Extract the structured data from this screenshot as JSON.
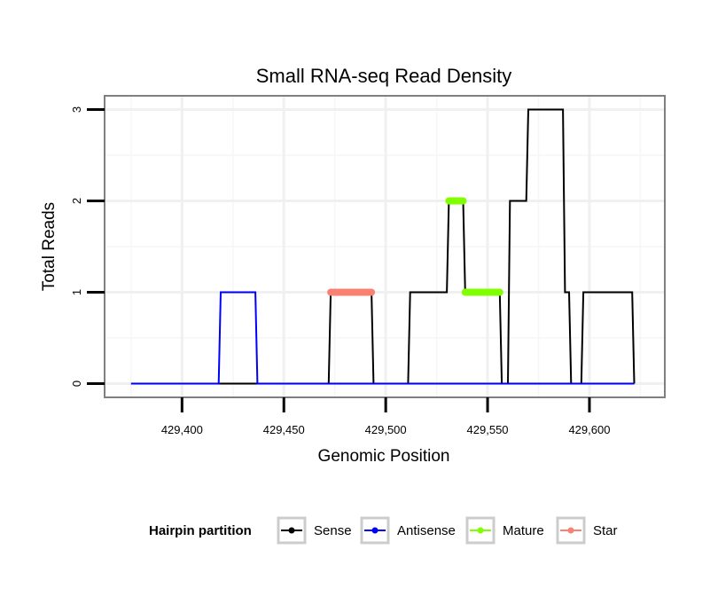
{
  "chart_data": {
    "type": "line",
    "title": "Small RNA-seq Read Density",
    "xlabel": "Genomic Position",
    "ylabel": "Total Reads",
    "xlim": [
      429362,
      429637
    ],
    "ylim": [
      -0.15,
      3.15
    ],
    "x_ticks": [
      429400,
      429450,
      429500,
      429550,
      429600
    ],
    "x_tick_labels": [
      "429,400",
      "429,450",
      "429,500",
      "429,550",
      "429,600"
    ],
    "y_ticks": [
      0,
      1,
      2,
      3
    ],
    "y_tick_labels": [
      "0",
      "1",
      "2",
      "3"
    ],
    "grid": true,
    "legend": {
      "title": "Hairpin partition",
      "position": "bottom",
      "entries": [
        {
          "name": "Sense",
          "color": "#000000"
        },
        {
          "name": "Antisense",
          "color": "#0000ff"
        },
        {
          "name": "Mature",
          "color": "#7fff00"
        },
        {
          "name": "Star",
          "color": "#fa8072"
        }
      ]
    },
    "series": [
      {
        "name": "Sense",
        "color": "#000000",
        "x": [
          429375,
          429472,
          429473,
          429493,
          429494,
          429511,
          429512,
          429530,
          429531,
          429538,
          429539,
          429556,
          429557,
          429560,
          429561,
          429569,
          429570,
          429587,
          429588,
          429590,
          429591,
          429596,
          429597,
          429621,
          429622
        ],
        "y": [
          0,
          0,
          1,
          1,
          0,
          0,
          1,
          1,
          2,
          2,
          1,
          1,
          0,
          0,
          2,
          2,
          3,
          3,
          1,
          1,
          0,
          0,
          1,
          1,
          0
        ]
      },
      {
        "name": "Antisense",
        "color": "#0000ff",
        "x": [
          429375,
          429418,
          429419,
          429436,
          429437,
          429622
        ],
        "y": [
          0,
          0,
          1,
          1,
          0,
          0
        ]
      },
      {
        "name": "Mature",
        "color": "#7fff00",
        "x": [
          429531,
          429538,
          null,
          429539,
          429556
        ],
        "y": [
          2,
          2,
          null,
          1,
          1
        ]
      },
      {
        "name": "Star",
        "color": "#fa8072",
        "x": [
          429473,
          429493
        ],
        "y": [
          1,
          1
        ]
      }
    ]
  }
}
